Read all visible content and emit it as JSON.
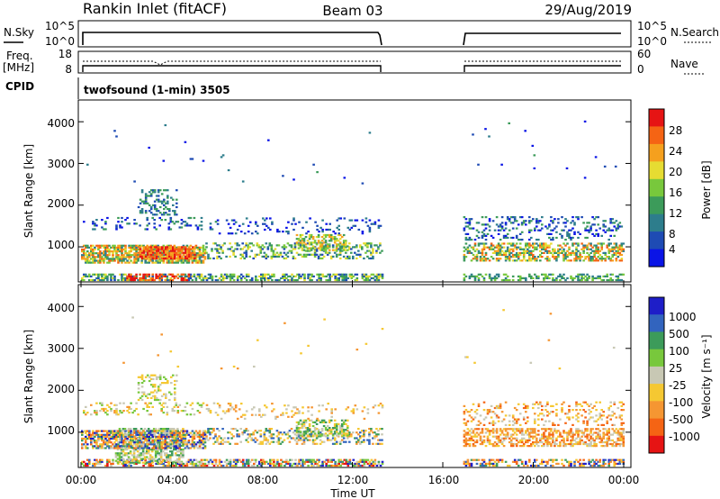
{
  "header": {
    "station": "Rankin Inlet (fitACF)",
    "beam": "Beam 03",
    "date": "29/Aug/2019"
  },
  "params": {
    "nsky_label": "N.Sky",
    "nsky_ticks": [
      "10^5",
      "10^0"
    ],
    "nsearch_label": "N.Search",
    "nsearch_ticks": [
      "10^5",
      "10^0"
    ],
    "freq_label": "Freq.",
    "freq_unit": "[MHz]",
    "freq_ticks": [
      "18",
      "8"
    ],
    "nave_label": "Nave",
    "nave_ticks": [
      "60",
      "0"
    ],
    "cpid_label": "CPID",
    "program": "twofsound (1-min) 3505"
  },
  "chart_data": [
    {
      "type": "heatmap",
      "quantity": "power",
      "xlabel": "Time UT",
      "ylabel": "Slant Range [km]",
      "xticks": [
        "00:00",
        "04:00",
        "08:00",
        "12:00",
        "16:00",
        "20:00",
        "00:00"
      ],
      "xlim": [
        0,
        24
      ],
      "ylim": [
        180,
        4500
      ],
      "yticks": [
        "1000",
        "2000",
        "3000",
        "4000"
      ],
      "data_gap_hours": [
        13.3,
        16.9
      ],
      "colorbar": {
        "label": "Power [dB]",
        "ticks": [
          "4",
          "8",
          "12",
          "16",
          "20",
          "24",
          "28"
        ],
        "range": [
          0,
          30
        ],
        "colors": [
          "#0a14e6",
          "#1e4bb4",
          "#2d7d8c",
          "#3c9b5a",
          "#78c83c",
          "#e6dc32",
          "#f5a01e",
          "#f56414",
          "#e61414"
        ]
      }
    },
    {
      "type": "heatmap",
      "quantity": "velocity",
      "xlabel": "Time UT",
      "ylabel": "Slant Range [km]",
      "xticks": [
        "00:00",
        "04:00",
        "08:00",
        "12:00",
        "16:00",
        "20:00",
        "00:00"
      ],
      "xlim": [
        0,
        24
      ],
      "ylim": [
        180,
        4500
      ],
      "yticks": [
        "1000",
        "2000",
        "3000",
        "4000"
      ],
      "data_gap_hours": [
        13.3,
        16.9
      ],
      "colorbar": {
        "label": "Velocity [m s⁻¹]",
        "ticks": [
          "1000",
          "500",
          "100",
          "25",
          "-25",
          "-100",
          "-500",
          "-1000"
        ],
        "colors": [
          "#1e1ec8",
          "#3264be",
          "#3c9b5a",
          "#78c83c",
          "#c8c8b4",
          "#f5c832",
          "#f59632",
          "#f56414",
          "#e61414"
        ]
      }
    }
  ]
}
